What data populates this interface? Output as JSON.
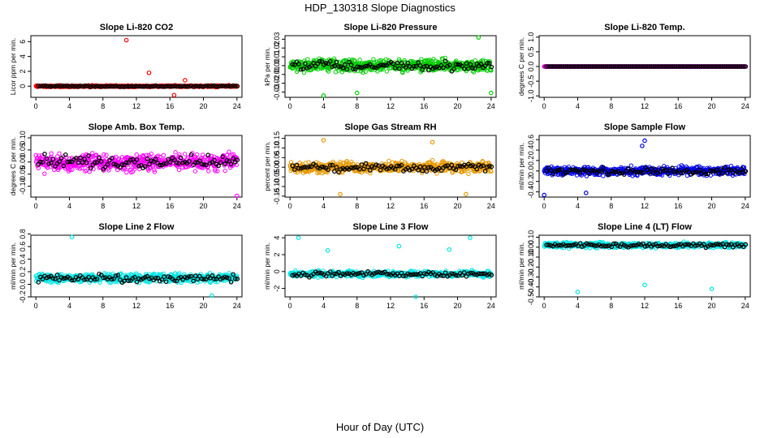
{
  "figure": {
    "title": "HDP_130318  Slope Diagnostics",
    "xlabel": "Hour of Day (UTC)"
  },
  "chart_data": [
    {
      "type": "scatter",
      "title": "Slope Li-820 CO2",
      "ylabel": "Licor ppm per min.",
      "color": "#ff0000",
      "spread": 0.15,
      "center": 0,
      "outliers": [
        [
          10.8,
          6.2
        ],
        [
          13.5,
          1.8
        ],
        [
          16.5,
          -1.2
        ],
        [
          17.8,
          0.8
        ]
      ],
      "xlim": [
        -0.6,
        24.6
      ],
      "xticks": [
        0,
        4,
        8,
        12,
        16,
        20,
        24
      ],
      "ylim": [
        -1.5,
        6.8
      ],
      "yticks": [
        0,
        2,
        4,
        6
      ]
    },
    {
      "type": "scatter",
      "title": "Slope Li-820 Pressure",
      "ylabel": "kPa per min.",
      "color": "#00cc00",
      "spread": 0.01,
      "center": 0,
      "outliers": [
        [
          22.5,
          0.032
        ],
        [
          4,
          -0.034
        ],
        [
          8,
          -0.031
        ],
        [
          24,
          -0.031
        ]
      ],
      "xlim": [
        -0.6,
        24.6
      ],
      "xticks": [
        0,
        4,
        8,
        12,
        16,
        20,
        24
      ],
      "ylim": [
        -0.036,
        0.034
      ],
      "yticks": [
        -0.03,
        -0.02,
        -0.01,
        0.0,
        0.01,
        0.02,
        0.03
      ]
    },
    {
      "type": "scatter",
      "title": "Slope Li-820 Temp.",
      "ylabel": "degrees C per min.",
      "color": "#cc00cc",
      "spread": 0,
      "center": 0,
      "outliers": [],
      "xlim": [
        -0.6,
        24.6
      ],
      "xticks": [
        0,
        4,
        8,
        12,
        16,
        20,
        24
      ],
      "ylim": [
        -1.05,
        1.05
      ],
      "yticks": [
        -1.0,
        -0.5,
        0.0,
        0.5,
        1.0
      ]
    },
    {
      "type": "scatter",
      "title": "Slope Amb. Box Temp.",
      "ylabel": "degrees C per min.",
      "color": "#ff00ff",
      "spread": 0.05,
      "center": 0,
      "outliers": [
        [
          24,
          -0.14
        ]
      ],
      "xlim": [
        -0.6,
        24.6
      ],
      "xticks": [
        0,
        4,
        8,
        12,
        16,
        20,
        24
      ],
      "ylim": [
        -0.145,
        0.11
      ],
      "yticks": [
        -0.1,
        -0.05,
        0.0,
        0.05,
        0.1
      ]
    },
    {
      "type": "scatter",
      "title": "Slope Gas Stream RH",
      "ylabel": "percent per min.",
      "color": "#e69900",
      "spread": 0.04,
      "center": 0,
      "outliers": [
        [
          4,
          0.14
        ],
        [
          6,
          -0.14
        ],
        [
          17,
          0.13
        ],
        [
          21,
          -0.14
        ]
      ],
      "xlim": [
        -0.6,
        24.6
      ],
      "xticks": [
        0,
        4,
        8,
        12,
        16,
        20,
        24
      ],
      "ylim": [
        -0.155,
        0.165
      ],
      "yticks": [
        -0.15,
        -0.1,
        -0.05,
        0.0,
        0.05,
        0.1,
        0.15
      ]
    },
    {
      "type": "scatter",
      "title": "Slope Sample Flow",
      "ylabel": "ml/min per min.",
      "color": "#0000ee",
      "spread": 0.12,
      "center": 0,
      "outliers": [
        [
          12,
          0.58
        ],
        [
          11.7,
          0.48
        ],
        [
          0,
          -0.46
        ],
        [
          5,
          -0.42
        ]
      ],
      "xlim": [
        -0.6,
        24.6
      ],
      "xticks": [
        0,
        4,
        8,
        12,
        16,
        20,
        24
      ],
      "ylim": [
        -0.5,
        0.68
      ],
      "yticks": [
        -0.4,
        -0.2,
        0.0,
        0.2,
        0.4,
        0.6
      ]
    },
    {
      "type": "scatter",
      "title": "Slope Line 2 Flow",
      "ylabel": "ml/min per min.",
      "color": "#00e5e5",
      "spread": 0.1,
      "center": 0.1,
      "outliers": [
        [
          4.3,
          0.75
        ],
        [
          21,
          -0.18
        ]
      ],
      "xlim": [
        -0.6,
        24.6
      ],
      "xticks": [
        0,
        4,
        8,
        12,
        16,
        20,
        24
      ],
      "ylim": [
        -0.2,
        0.78
      ],
      "yticks": [
        -0.2,
        0.0,
        0.2,
        0.4,
        0.6,
        0.8
      ]
    },
    {
      "type": "scatter",
      "title": "Slope Line 3 Flow",
      "ylabel": "ml/min per min.",
      "color": "#00e5e5",
      "spread": 0.5,
      "center": -0.3,
      "outliers": [
        [
          1,
          4
        ],
        [
          21.5,
          4
        ],
        [
          13,
          3
        ],
        [
          15,
          -3
        ],
        [
          4.5,
          2.5
        ],
        [
          19,
          2.6
        ]
      ],
      "xlim": [
        -0.6,
        24.6
      ],
      "xticks": [
        0,
        4,
        8,
        12,
        16,
        20,
        24
      ],
      "ylim": [
        -3,
        4.3
      ],
      "yticks": [
        -2,
        0,
        2,
        4
      ]
    },
    {
      "type": "scatter",
      "title": "Slope Line 4 (LT) Flow",
      "ylabel": "ml/min per min.",
      "color": "#00e5e5",
      "spread": 0.04,
      "center": 0.02,
      "outliers": [
        [
          4,
          -0.45
        ],
        [
          12,
          -0.38
        ],
        [
          20,
          -0.42
        ]
      ],
      "xlim": [
        -0.6,
        24.6
      ],
      "xticks": [
        0,
        4,
        8,
        12,
        16,
        20,
        24
      ],
      "ylim": [
        -0.5,
        0.12
      ],
      "yticks": [
        -0.5,
        -0.4,
        -0.3,
        -0.2,
        -0.1,
        0.0,
        0.1
      ]
    }
  ]
}
